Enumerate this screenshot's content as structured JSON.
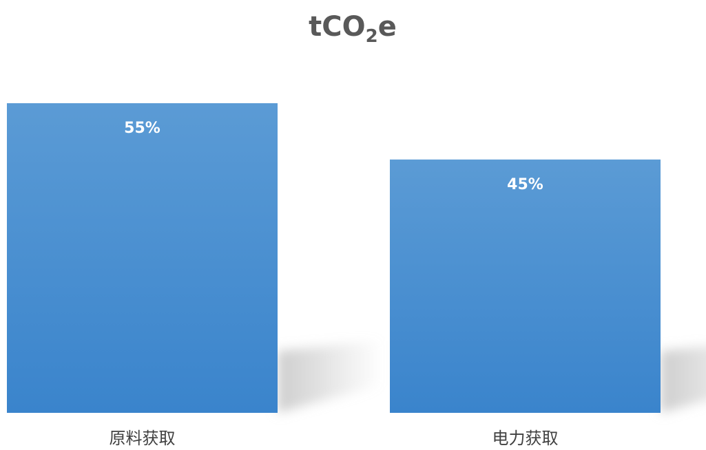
{
  "chart_data": {
    "type": "bar",
    "title": {
      "main": "tCO",
      "subscript": "2",
      "suffix": "e"
    },
    "categories": [
      "原料获取",
      "电力获取"
    ],
    "values": [
      55,
      45
    ],
    "data_labels": [
      "55%",
      "45%"
    ],
    "unit": "%",
    "ylim": [
      0,
      55
    ],
    "grid": false,
    "legend": "none",
    "colors": {
      "bar_top": "#5b9bd5",
      "bar_bottom": "#3a84cc",
      "shadow": "#c8c8c8",
      "label": "#ffffff",
      "title": "#595959",
      "category": "#404040"
    }
  }
}
